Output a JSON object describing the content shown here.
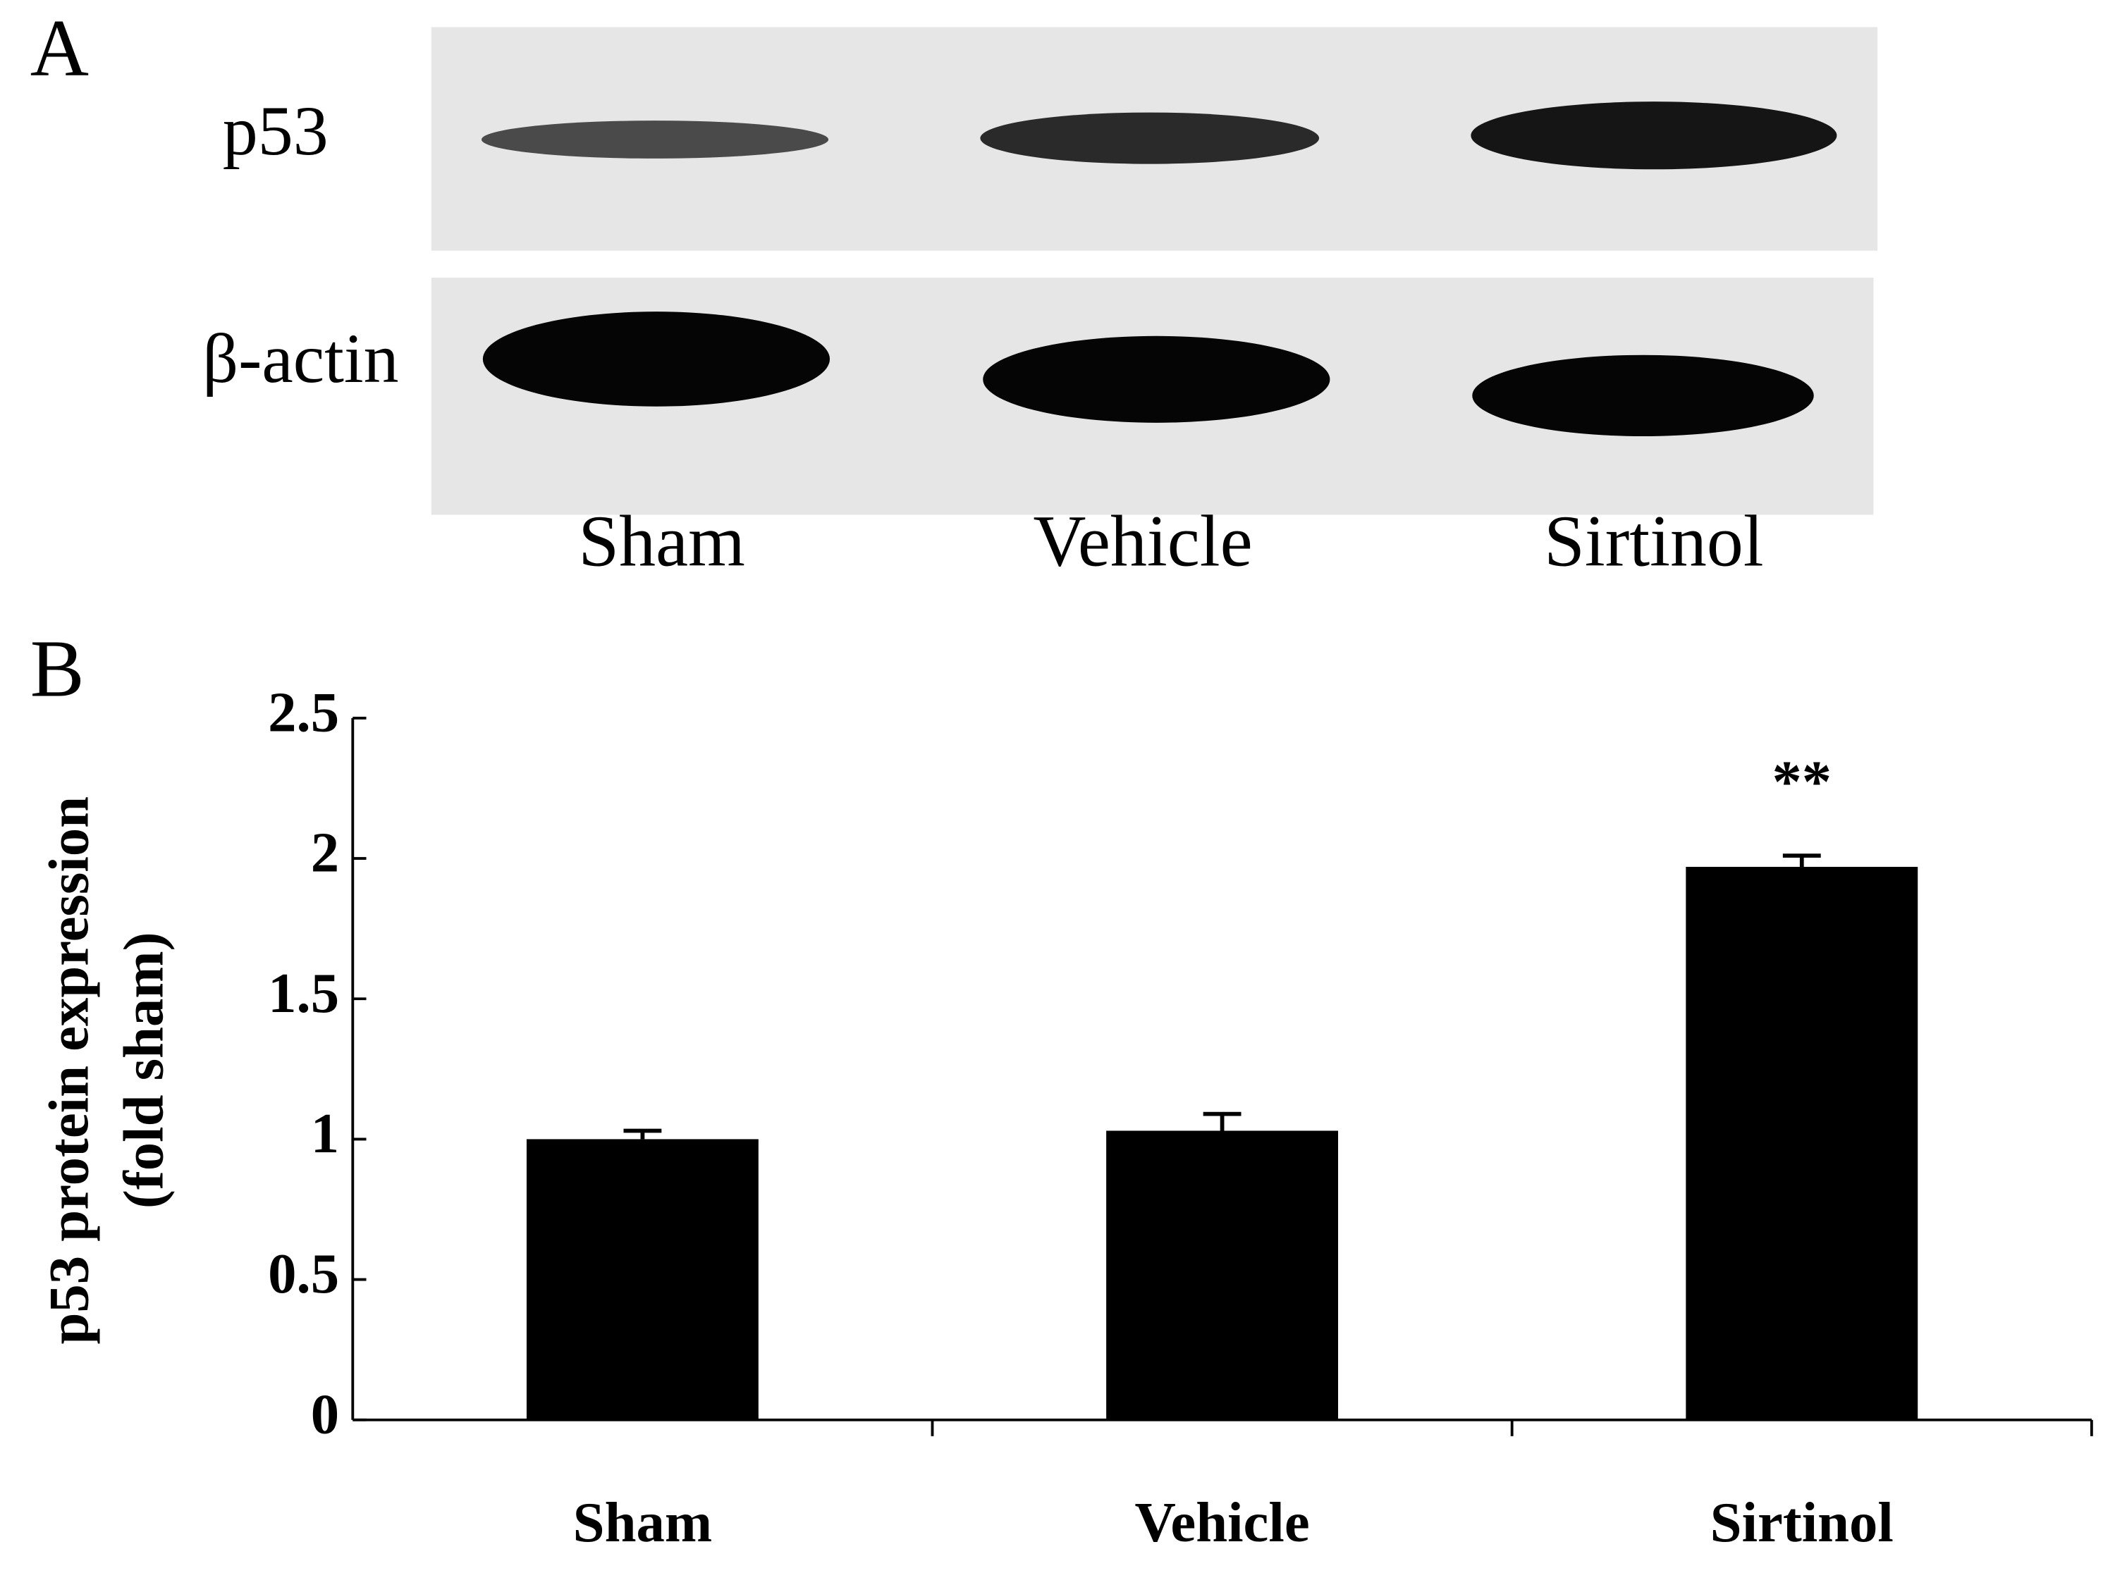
{
  "panel_a": {
    "label": "A",
    "rows": [
      "p53",
      "β-actin"
    ],
    "lanes": [
      "Sham",
      "Vehicle",
      "Sirtinol"
    ]
  },
  "chart_data": {
    "type": "bar",
    "panel_label": "B",
    "ylabel": [
      "p53 protein expression",
      "(fold sham)"
    ],
    "categories": [
      "Sham",
      "Vehicle",
      "Sirtinol"
    ],
    "values": [
      1.0,
      1.03,
      1.97
    ],
    "errors": [
      0.03,
      0.06,
      0.04
    ],
    "value_annotations": [
      null,
      null,
      "**"
    ],
    "color": "#000000",
    "ylim": [
      0,
      2.5
    ],
    "yticks": [
      0,
      0.5,
      1,
      1.5,
      2,
      2.5
    ],
    "grid": false
  }
}
